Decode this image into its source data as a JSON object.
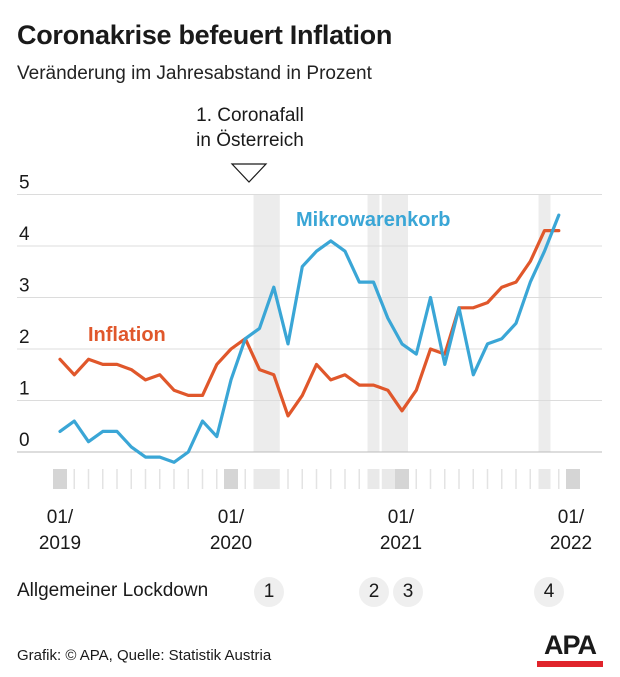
{
  "header": {
    "title": "Coronakrise befeuert Inflation",
    "subtitle": "Veränderung im Jahresabstand in Prozent"
  },
  "annotation": {
    "line1": "1. Coronafall",
    "line2": "in Österreich"
  },
  "years": [
    {
      "line1": "01/",
      "line2": "2019"
    },
    {
      "line1": "01/",
      "line2": "2020"
    },
    {
      "line1": "01/",
      "line2": "2021"
    },
    {
      "line1": "01/",
      "line2": "2022"
    }
  ],
  "lockdown": {
    "label": "Allgemeiner Lockdown",
    "numbers": [
      "1",
      "2",
      "3",
      "4"
    ]
  },
  "footer": {
    "source": "Grafik: © APA, Quelle: Statistik Austria",
    "logo": "APA"
  },
  "colors": {
    "inflation": "#e0572b",
    "mikrowarenkorb": "#3aa6d6",
    "grid": "#dcdcdc",
    "lockdown_band": "#ececec",
    "logo_red": "#e0242b"
  },
  "chart_data": {
    "type": "line",
    "x_start": "2019-01",
    "x_end": "2022-01",
    "ylim": [
      -0.3,
      5.2
    ],
    "yticks": [
      "0",
      "1",
      "2",
      "3",
      "4",
      "5"
    ],
    "grid": true,
    "lockdown_periods": [
      {
        "label": "1",
        "start": "2020-03",
        "end": "2020-04"
      },
      {
        "label": "2",
        "start": "2020-11",
        "end": "2020-11"
      },
      {
        "label": "3",
        "start": "2020-12",
        "end": "2021-01"
      },
      {
        "label": "4",
        "start": "2021-11",
        "end": "2021-11"
      }
    ],
    "series": [
      {
        "name": "Inflation",
        "values": [
          1.8,
          1.5,
          1.8,
          1.7,
          1.7,
          1.6,
          1.4,
          1.5,
          1.2,
          1.1,
          1.1,
          1.7,
          2.0,
          2.2,
          1.6,
          1.5,
          0.7,
          1.1,
          1.7,
          1.4,
          1.5,
          1.3,
          1.3,
          1.2,
          0.8,
          1.2,
          2.0,
          1.9,
          2.8,
          2.8,
          2.9,
          3.2,
          3.3,
          3.7,
          4.3,
          4.3
        ]
      },
      {
        "name": "Mikrowarenkorb",
        "values": [
          0.4,
          0.6,
          0.2,
          0.4,
          0.4,
          0.1,
          -0.1,
          -0.1,
          -0.2,
          0.0,
          0.6,
          0.3,
          1.4,
          2.2,
          2.4,
          3.2,
          2.1,
          3.6,
          3.9,
          4.1,
          3.9,
          3.3,
          3.3,
          2.6,
          2.1,
          1.9,
          3.0,
          1.7,
          2.8,
          1.5,
          2.1,
          2.2,
          2.5,
          3.3,
          3.9,
          4.6
        ]
      }
    ]
  }
}
